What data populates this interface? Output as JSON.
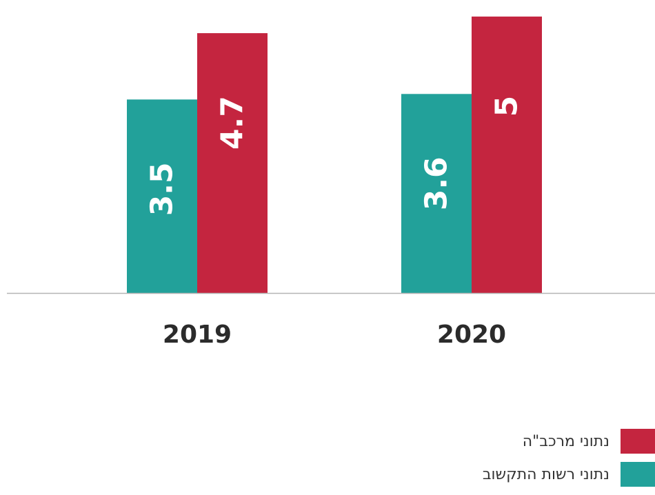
{
  "chart_data": {
    "type": "bar",
    "categories": [
      "2019",
      "2020"
    ],
    "series": [
      {
        "name": "נתוני רשות התקשוב",
        "values": [
          3.5,
          3.6
        ],
        "color": "#22a19a"
      },
      {
        "name": "נתוני מרכב\"ה",
        "values": [
          4.7,
          5
        ],
        "color": "#c4253f"
      }
    ],
    "value_labels": {
      "2019": [
        "3.5",
        "4.7"
      ],
      "2020": [
        "3.6",
        "5"
      ]
    },
    "ylim": [
      0,
      5.15
    ],
    "grid": false,
    "legend_position": "bottom-right",
    "baseline_color": "#b5b5b5",
    "tick_color": "#2b2b2b"
  }
}
